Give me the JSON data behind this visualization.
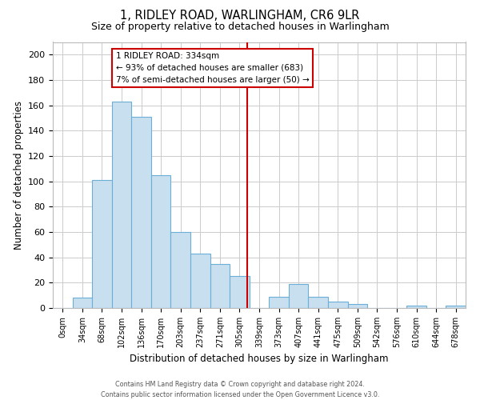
{
  "title": "1, RIDLEY ROAD, WARLINGHAM, CR6 9LR",
  "subtitle": "Size of property relative to detached houses in Warlingham",
  "xlabel": "Distribution of detached houses by size in Warlingham",
  "ylabel": "Number of detached properties",
  "bar_labels": [
    "0sqm",
    "34sqm",
    "68sqm",
    "102sqm",
    "136sqm",
    "170sqm",
    "203sqm",
    "237sqm",
    "271sqm",
    "305sqm",
    "339sqm",
    "373sqm",
    "407sqm",
    "441sqm",
    "475sqm",
    "509sqm",
    "542sqm",
    "576sqm",
    "610sqm",
    "644sqm",
    "678sqm"
  ],
  "bar_values": [
    0,
    8,
    101,
    163,
    151,
    105,
    60,
    43,
    35,
    25,
    0,
    9,
    19,
    9,
    5,
    3,
    0,
    0,
    2,
    0,
    2
  ],
  "bar_color": "#c8dff0",
  "bar_edge_color": "#6baed6",
  "property_line_x": 9.88,
  "annotation_title": "1 RIDLEY ROAD: 334sqm",
  "annotation_line1": "← 93% of detached houses are smaller (683)",
  "annotation_line2": "7% of semi-detached houses are larger (50) →",
  "vline_color": "#cc0000",
  "annotation_box_color": "#ffffff",
  "annotation_box_edge": "#cc0000",
  "ylim": [
    0,
    210
  ],
  "yticks": [
    0,
    20,
    40,
    60,
    80,
    100,
    120,
    140,
    160,
    180,
    200
  ],
  "footer_line1": "Contains HM Land Registry data © Crown copyright and database right 2024.",
  "footer_line2": "Contains public sector information licensed under the Open Government Licence v3.0.",
  "background_color": "#ffffff",
  "grid_color": "#cccccc"
}
